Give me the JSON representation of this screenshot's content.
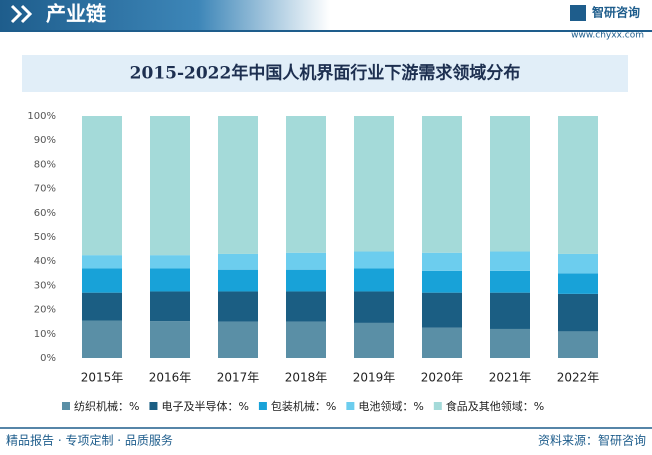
{
  "header": {
    "title": "产业链",
    "brand": "智研咨询",
    "url": "www.chyxx.com"
  },
  "footer": {
    "slogan": "精品报告 · 专项定制 · 品质服务",
    "source": "资料来源：智研咨询"
  },
  "chart_data": {
    "type": "stacked_bar",
    "title": "2015-2022年中国人机界面行业下游需求领域分布",
    "categories": [
      "2015年",
      "2016年",
      "2017年",
      "2018年",
      "2019年",
      "2020年",
      "2021年",
      "2022年"
    ],
    "series": [
      {
        "name": "纺织机械：%",
        "color": "#5a8fa6",
        "values": [
          15.5,
          15.2,
          15,
          15,
          14.5,
          12.5,
          12,
          11
        ]
      },
      {
        "name": "电子及半导体：%",
        "color": "#1b5e83",
        "values": [
          11.5,
          12.3,
          12.5,
          12.5,
          13,
          14.5,
          15,
          15.5
        ]
      },
      {
        "name": "包装机械：%",
        "color": "#18a2d8",
        "values": [
          10,
          9.5,
          9,
          9,
          9.5,
          9,
          9,
          8.5
        ]
      },
      {
        "name": "电池领域：%",
        "color": "#6ccdee",
        "values": [
          5.5,
          5.5,
          6.5,
          7,
          7,
          7.5,
          8,
          8
        ]
      },
      {
        "name": "食品及其他领域：%",
        "color": "#a4dad9",
        "values": [
          57.5,
          57.5,
          57,
          56.5,
          56,
          56.5,
          56,
          57
        ]
      }
    ],
    "ylim": [
      0,
      100
    ],
    "yticks": [
      {
        "value": 0,
        "label": "0%"
      },
      {
        "value": 10,
        "label": "10%"
      },
      {
        "value": 20,
        "label": "20%"
      },
      {
        "value": 30,
        "label": "30%"
      },
      {
        "value": 40,
        "label": "40%"
      },
      {
        "value": 50,
        "label": "50%"
      },
      {
        "value": 60,
        "label": "60%"
      },
      {
        "value": 70,
        "label": "70%"
      },
      {
        "value": 80,
        "label": "80%"
      },
      {
        "value": 90,
        "label": "90%"
      },
      {
        "value": 100,
        "label": "100%"
      }
    ],
    "grid": false
  }
}
